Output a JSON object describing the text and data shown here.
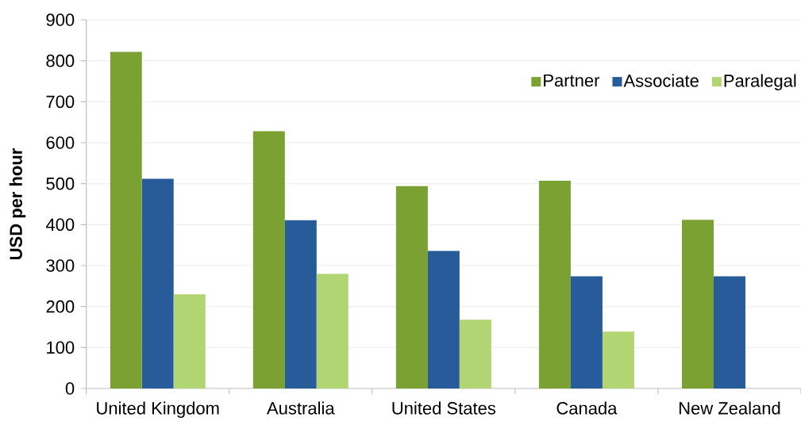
{
  "chart_data": {
    "type": "bar",
    "ylabel": "USD per hour",
    "categories": [
      "United Kingdom",
      "Australia",
      "United States",
      "Canada",
      "New Zealand"
    ],
    "series": [
      {
        "name": "Partner",
        "color": "#7aa132",
        "values": [
          822,
          628,
          494,
          507,
          412
        ]
      },
      {
        "name": "Associate",
        "color": "#285b9a",
        "values": [
          512,
          411,
          336,
          274,
          274
        ]
      },
      {
        "name": "Paralegal",
        "color": "#b2d574",
        "values": [
          230,
          280,
          168,
          139,
          null
        ]
      }
    ],
    "ylim": [
      0,
      900
    ],
    "yticks": [
      0,
      100,
      200,
      300,
      400,
      500,
      600,
      700,
      800,
      900
    ],
    "grid": "y",
    "legend": "top right"
  }
}
